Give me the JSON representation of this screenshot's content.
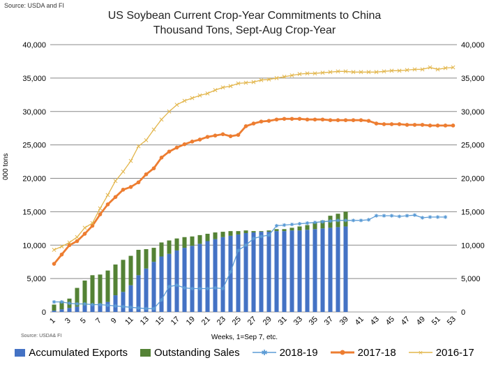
{
  "source_top": "Source: USDA and FI",
  "source_bottom": "Source: USDA& FI",
  "chart_data": {
    "type": "bar",
    "title": "US Soybean Current Crop-Year Commitments to China",
    "subtitle": "Thousand Tons, Sept-Aug Crop-Year",
    "xlabel": "Weeks, 1=Sep 7, etc.",
    "ylabel": "000 tons",
    "ylim": [
      0,
      40000
    ],
    "yticks": [
      0,
      5000,
      10000,
      15000,
      20000,
      25000,
      30000,
      35000,
      40000
    ],
    "ytick_labels": [
      "0",
      "5,000",
      "10,000",
      "15,000",
      "20,000",
      "25,000",
      "30,000",
      "35,000",
      "40,000"
    ],
    "xticks": [
      "1",
      "3",
      "5",
      "7",
      "9",
      "11",
      "13",
      "15",
      "17",
      "19",
      "21",
      "23",
      "25",
      "27",
      "29",
      "31",
      "33",
      "35",
      "37",
      "39",
      "41",
      "43",
      "45",
      "47",
      "49",
      "51",
      "53"
    ],
    "x_weeks": 53,
    "grid": true,
    "legend_position": "bottom",
    "colors": {
      "accumulated": "#4472C4",
      "outstanding": "#548235",
      "s2018": "#5B9BD5",
      "s2017": "#ED7D31",
      "s2016": "#E2B54A",
      "grid": "#888888"
    },
    "series": [
      {
        "name": "Accumulated Exports",
        "kind": "bar",
        "weeks": [
          1,
          2,
          3,
          4,
          5,
          6,
          7,
          8,
          9,
          10,
          11,
          12,
          13,
          14,
          15,
          16,
          17,
          18,
          19,
          20,
          21,
          22,
          23,
          24,
          25,
          26,
          27,
          28,
          29,
          30,
          31,
          32,
          33,
          34,
          35,
          36,
          37,
          38,
          39
        ],
        "values": [
          200,
          400,
          600,
          800,
          1000,
          1100,
          1200,
          1500,
          2500,
          3000,
          4000,
          5500,
          6500,
          7500,
          8300,
          8700,
          9200,
          9600,
          9900,
          10200,
          10600,
          10900,
          11200,
          11400,
          11600,
          11800,
          11900,
          12000,
          12000,
          12100,
          12100,
          12200,
          12200,
          12300,
          12400,
          12500,
          12600,
          12700,
          12800
        ]
      },
      {
        "name": "Outstanding Sales",
        "kind": "bar",
        "weeks": [
          1,
          2,
          3,
          4,
          5,
          6,
          7,
          8,
          9,
          10,
          11,
          12,
          13,
          14,
          15,
          16,
          17,
          18,
          19,
          20,
          21,
          22,
          23,
          24,
          25,
          26,
          27,
          28,
          29,
          30,
          31,
          32,
          33,
          34,
          35,
          36,
          37,
          38,
          39
        ],
        "values": [
          900,
          1200,
          1400,
          2800,
          3700,
          4400,
          4400,
          4700,
          4600,
          4800,
          4400,
          3800,
          2900,
          2100,
          2100,
          2000,
          1800,
          1600,
          1400,
          1300,
          1100,
          1000,
          800,
          700,
          500,
          400,
          200,
          100,
          200,
          300,
          300,
          400,
          600,
          700,
          1000,
          1200,
          1800,
          2000,
          2200
        ]
      },
      {
        "name": "2018-19",
        "kind": "line",
        "weeks": [
          1,
          2,
          3,
          4,
          5,
          6,
          7,
          8,
          9,
          10,
          11,
          12,
          13,
          14,
          15,
          16,
          17,
          18,
          19,
          20,
          21,
          22,
          23,
          24,
          25,
          26,
          27,
          28,
          29,
          30,
          31,
          32,
          33,
          34,
          35,
          36,
          37,
          38,
          39,
          40,
          41,
          42,
          43,
          44,
          45,
          46,
          47,
          48,
          49,
          50,
          51,
          52
        ],
        "values": [
          1500,
          1500,
          1300,
          1200,
          1200,
          1100,
          1100,
          1000,
          900,
          800,
          700,
          600,
          500,
          500,
          1800,
          3800,
          4000,
          3600,
          3500,
          3500,
          3500,
          3600,
          3500,
          6000,
          9200,
          10000,
          11000,
          11300,
          11500,
          12900,
          13000,
          13100,
          13200,
          13300,
          13400,
          13500,
          13600,
          13700,
          13700,
          13700,
          13700,
          13800,
          14400,
          14400,
          14400,
          14300,
          14400,
          14500,
          14100,
          14200,
          14200,
          14200
        ]
      },
      {
        "name": "2017-18",
        "kind": "line",
        "weeks": [
          1,
          2,
          3,
          4,
          5,
          6,
          7,
          8,
          9,
          10,
          11,
          12,
          13,
          14,
          15,
          16,
          17,
          18,
          19,
          20,
          21,
          22,
          23,
          24,
          25,
          26,
          27,
          28,
          29,
          30,
          31,
          32,
          33,
          34,
          35,
          36,
          37,
          38,
          39,
          40,
          41,
          42,
          43,
          44,
          45,
          46,
          47,
          48,
          49,
          50,
          51,
          52,
          53
        ],
        "values": [
          7200,
          8600,
          10000,
          10600,
          11700,
          12900,
          14600,
          16100,
          17200,
          18300,
          18700,
          19400,
          20600,
          21500,
          23100,
          24000,
          24600,
          25100,
          25500,
          25800,
          26200,
          26400,
          26600,
          26300,
          26500,
          27800,
          28200,
          28500,
          28600,
          28800,
          28900,
          28900,
          28900,
          28800,
          28800,
          28800,
          28700,
          28700,
          28700,
          28700,
          28700,
          28600,
          28200,
          28100,
          28100,
          28100,
          28000,
          28000,
          28000,
          27900,
          27900,
          27900,
          27900
        ]
      },
      {
        "name": "2016-17",
        "kind": "line",
        "weeks": [
          1,
          2,
          3,
          4,
          5,
          6,
          7,
          8,
          9,
          10,
          11,
          12,
          13,
          14,
          15,
          16,
          17,
          18,
          19,
          20,
          21,
          22,
          23,
          24,
          25,
          26,
          27,
          28,
          29,
          30,
          31,
          32,
          33,
          34,
          35,
          36,
          37,
          38,
          39,
          40,
          41,
          42,
          43,
          44,
          45,
          46,
          47,
          48,
          49,
          50,
          51,
          52,
          53
        ],
        "values": [
          9300,
          9800,
          10400,
          11200,
          12600,
          13300,
          15500,
          17500,
          19600,
          21000,
          22600,
          24800,
          25700,
          27300,
          28800,
          30000,
          31000,
          31600,
          32000,
          32400,
          32700,
          33200,
          33600,
          33800,
          34200,
          34300,
          34400,
          34700,
          34800,
          35000,
          35200,
          35400,
          35600,
          35700,
          35700,
          35800,
          35900,
          36000,
          36000,
          35900,
          35900,
          35900,
          35900,
          36000,
          36100,
          36100,
          36200,
          36300,
          36300,
          36600,
          36300,
          36500,
          36600
        ]
      }
    ]
  }
}
